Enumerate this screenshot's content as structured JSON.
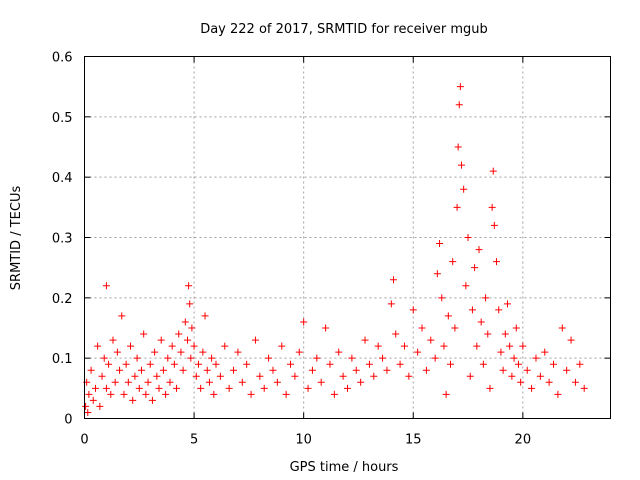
{
  "chart_data": {
    "type": "scatter",
    "title": "Day 222 of 2017, SRMTID for receiver mgub",
    "xlabel": "GPS time / hours",
    "ylabel": "SRMTID / TECUs",
    "xlim": [
      0,
      24
    ],
    "ylim": [
      0,
      0.6
    ],
    "xticks": [
      0,
      5,
      10,
      15,
      20
    ],
    "xtick_labels": [
      "0",
      "5",
      "10",
      "15",
      "20"
    ],
    "yticks": [
      0,
      0.1,
      0.2,
      0.3,
      0.4,
      0.5,
      0.6
    ],
    "ytick_labels": [
      "0",
      "0.1",
      "0.2",
      "0.3",
      "0.4",
      "0.5",
      "0.6"
    ],
    "grid": true,
    "marker": "+",
    "color": "#ff0000",
    "series": [
      {
        "name": "SRMTID",
        "x": [
          0.05,
          0.1,
          0.15,
          0.2,
          0.3,
          0.4,
          0.5,
          0.6,
          0.7,
          0.8,
          0.9,
          1.0,
          1.0,
          1.1,
          1.2,
          1.3,
          1.4,
          1.5,
          1.6,
          1.7,
          1.8,
          1.9,
          2.0,
          2.1,
          2.2,
          2.3,
          2.4,
          2.5,
          2.6,
          2.7,
          2.8,
          2.9,
          3.0,
          3.1,
          3.2,
          3.3,
          3.4,
          3.5,
          3.6,
          3.7,
          3.8,
          3.9,
          4.0,
          4.1,
          4.2,
          4.3,
          4.4,
          4.5,
          4.6,
          4.7,
          4.75,
          4.8,
          4.85,
          4.9,
          5.0,
          5.1,
          5.2,
          5.3,
          5.4,
          5.5,
          5.6,
          5.7,
          5.8,
          5.9,
          6.0,
          6.2,
          6.4,
          6.6,
          6.8,
          7.0,
          7.2,
          7.4,
          7.6,
          7.8,
          8.0,
          8.2,
          8.4,
          8.6,
          8.8,
          9.0,
          9.2,
          9.4,
          9.6,
          9.8,
          10.0,
          10.2,
          10.4,
          10.6,
          10.8,
          11.0,
          11.2,
          11.4,
          11.6,
          11.8,
          12.0,
          12.2,
          12.4,
          12.6,
          12.8,
          13.0,
          13.2,
          13.4,
          13.6,
          13.8,
          14.0,
          14.1,
          14.2,
          14.4,
          14.6,
          14.8,
          15.0,
          15.2,
          15.4,
          15.6,
          15.8,
          16.0,
          16.1,
          16.2,
          16.3,
          16.4,
          16.5,
          16.6,
          16.7,
          16.8,
          16.9,
          17.0,
          17.05,
          17.1,
          17.15,
          17.2,
          17.3,
          17.4,
          17.5,
          17.6,
          17.7,
          17.8,
          17.9,
          18.0,
          18.1,
          18.2,
          18.3,
          18.4,
          18.5,
          18.6,
          18.65,
          18.7,
          18.8,
          18.9,
          19.0,
          19.1,
          19.2,
          19.3,
          19.4,
          19.5,
          19.6,
          19.7,
          19.8,
          19.9,
          20.0,
          20.2,
          20.4,
          20.6,
          20.8,
          21.0,
          21.2,
          21.4,
          21.6,
          21.8,
          22.0,
          22.2,
          22.4,
          22.6,
          22.8
        ],
        "y": [
          0.02,
          0.06,
          0.01,
          0.04,
          0.08,
          0.03,
          0.05,
          0.12,
          0.02,
          0.07,
          0.1,
          0.22,
          0.05,
          0.09,
          0.04,
          0.13,
          0.06,
          0.11,
          0.08,
          0.17,
          0.04,
          0.09,
          0.06,
          0.12,
          0.03,
          0.07,
          0.1,
          0.05,
          0.08,
          0.14,
          0.04,
          0.06,
          0.09,
          0.03,
          0.11,
          0.07,
          0.05,
          0.13,
          0.08,
          0.04,
          0.1,
          0.06,
          0.12,
          0.09,
          0.05,
          0.14,
          0.11,
          0.08,
          0.16,
          0.13,
          0.22,
          0.19,
          0.1,
          0.15,
          0.12,
          0.07,
          0.09,
          0.05,
          0.11,
          0.17,
          0.08,
          0.06,
          0.1,
          0.04,
          0.09,
          0.07,
          0.12,
          0.05,
          0.08,
          0.11,
          0.06,
          0.09,
          0.04,
          0.13,
          0.07,
          0.05,
          0.1,
          0.08,
          0.06,
          0.12,
          0.04,
          0.09,
          0.07,
          0.11,
          0.16,
          0.05,
          0.08,
          0.1,
          0.06,
          0.15,
          0.09,
          0.04,
          0.11,
          0.07,
          0.05,
          0.1,
          0.08,
          0.06,
          0.13,
          0.09,
          0.07,
          0.12,
          0.1,
          0.08,
          0.19,
          0.23,
          0.14,
          0.09,
          0.12,
          0.07,
          0.18,
          0.11,
          0.15,
          0.08,
          0.13,
          0.1,
          0.24,
          0.29,
          0.2,
          0.12,
          0.04,
          0.17,
          0.09,
          0.26,
          0.15,
          0.35,
          0.45,
          0.52,
          0.55,
          0.42,
          0.38,
          0.22,
          0.3,
          0.07,
          0.18,
          0.25,
          0.12,
          0.28,
          0.16,
          0.09,
          0.2,
          0.14,
          0.05,
          0.35,
          0.41,
          0.32,
          0.26,
          0.18,
          0.11,
          0.08,
          0.14,
          0.19,
          0.12,
          0.07,
          0.1,
          0.15,
          0.09,
          0.06,
          0.12,
          0.08,
          0.05,
          0.1,
          0.07,
          0.11,
          0.06,
          0.09,
          0.04,
          0.15,
          0.08,
          0.13,
          0.06,
          0.09,
          0.05
        ]
      }
    ]
  }
}
